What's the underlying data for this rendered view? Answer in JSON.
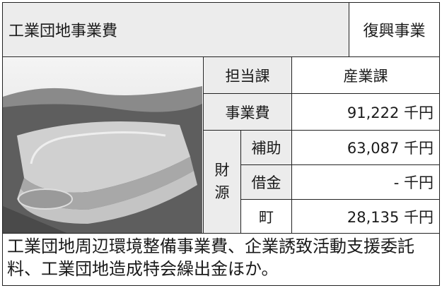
{
  "header": {
    "title": "工業団地事業費",
    "tag": "復興事業"
  },
  "table": {
    "rows": [
      [
        "担当課",
        "産業課"
      ],
      [
        "事業費",
        "91,222 千円"
      ]
    ],
    "funding": {
      "label": "財源",
      "rows": [
        [
          "補助",
          "63,087 千円"
        ],
        [
          "借金",
          "- 千円"
        ],
        [
          "町",
          "28,135 千円"
        ]
      ]
    }
  },
  "note": "工業団地周辺環境整備事業費、企業誘致活動支援委託料、工業団地造成特会繰出金ほか。"
}
